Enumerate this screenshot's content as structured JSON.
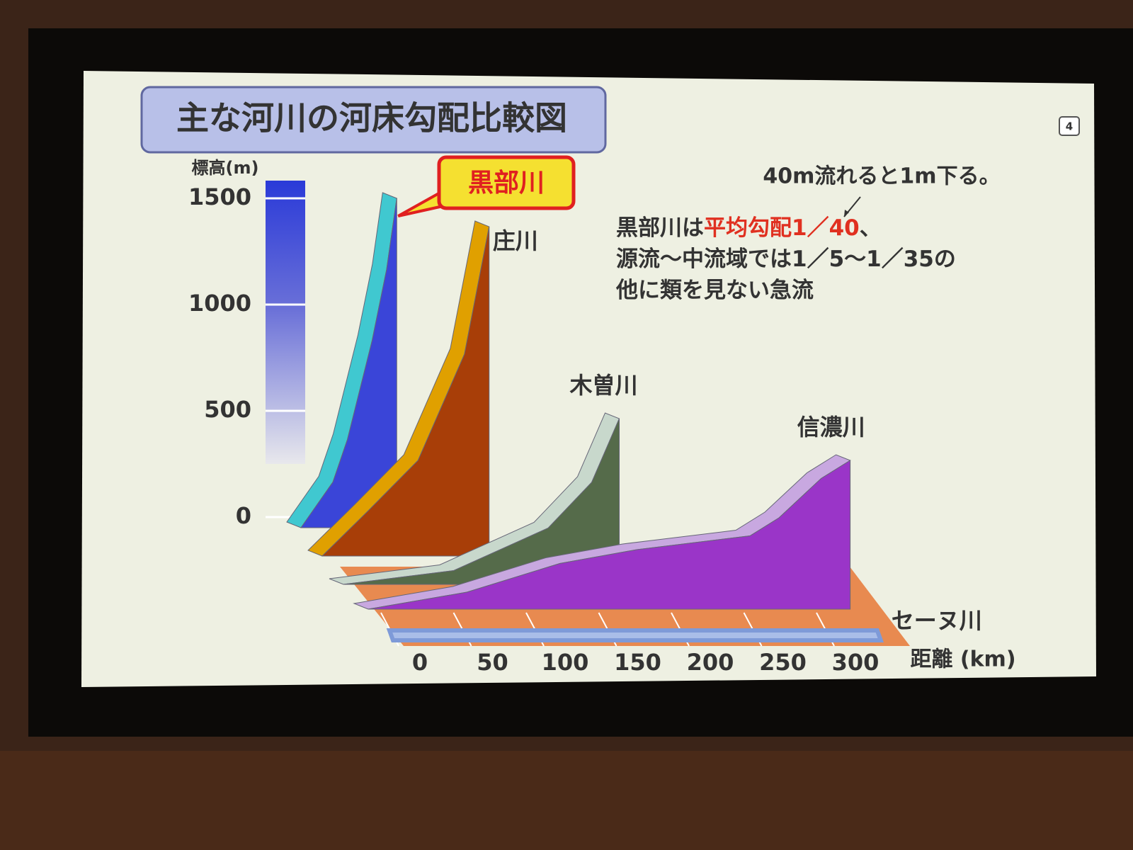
{
  "chart_data": {
    "type": "area",
    "title": "主な河川の河床勾配比較図",
    "page_number": "4",
    "ylabel": "標高(m)",
    "xlabel": "距離 (km)",
    "ylim": [
      0,
      1550
    ],
    "yticks": [
      0,
      500,
      1000,
      1500
    ],
    "xlim": [
      0,
      336
    ],
    "xticks": [
      0,
      50,
      100,
      150,
      200,
      250,
      300
    ],
    "annotation": "40m流れると1m下る。",
    "note": [
      [
        "黒部川は",
        "平均勾配1／40",
        "、"
      ],
      [
        "源流～中流域では1／5～1／35の"
      ],
      [
        "他に類を見ない急流"
      ]
    ],
    "series": [
      {
        "name": "黒部川",
        "color": "#3a45d8",
        "edge_color": "#40c8d0",
        "x": [
          0,
          22,
          32,
          49,
          59,
          66
        ],
        "values": [
          0,
          215,
          415,
          880,
          1215,
          1550
        ]
      },
      {
        "name": "庄川",
        "color": "#a83e08",
        "edge_color": "#e0a000",
        "x": [
          0,
          32,
          66,
          98,
          115
        ],
        "values": [
          0,
          215,
          450,
          950,
          1550
        ]
      },
      {
        "name": "木曽川",
        "color": "#556b4a",
        "edge_color": "#c8d8cc",
        "x": [
          0,
          76,
          141,
          171,
          190
        ],
        "values": [
          0,
          65,
          265,
          480,
          780
        ]
      },
      {
        "name": "信濃川",
        "color": "#9a35c8",
        "edge_color": "#c8a8e0",
        "x": [
          0,
          68,
          132,
          185,
          263,
          283,
          312,
          332
        ],
        "values": [
          0,
          80,
          215,
          280,
          345,
          430,
          615,
          700
        ]
      },
      {
        "name": "セーヌ川",
        "color": "#7e9ad8",
        "edge_color": "#a9bde8",
        "x": [
          0,
          336
        ],
        "values": [
          0,
          0
        ]
      }
    ]
  }
}
